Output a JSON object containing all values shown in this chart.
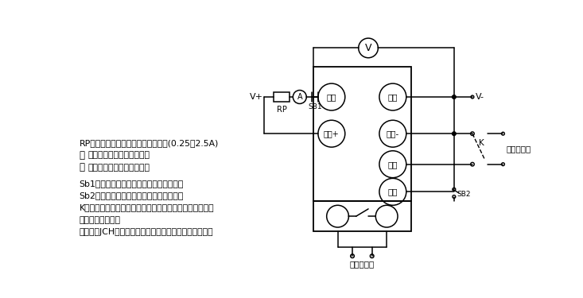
{
  "bg_color": "#ffffff",
  "fig_width": 7.33,
  "fig_height": 3.75,
  "dpi": 100,
  "annotations": [
    "RP为大功率滑成变阻器用来调节电流(0.25～2.5A)",
    "为安培表用来监视合闸电流",
    "为电压表用来监视额定电压",
    "Sb1为常闭按钮，用来复位合闸保持电流。",
    "Sb2为常开按钮，用来测试放电闭锁功能。",
    "K为刀开关或同一继电器的两付同时动作的常开触点，用来",
    "控制延时的启动。",
    "另有一付JCH常开触点接秒表停止，用来停止秒表计时。"
  ],
  "terminals_left": [
    "重合",
    "电源+"
  ],
  "terminals_right": [
    "合闸",
    "电源-",
    "启动",
    "放电"
  ]
}
